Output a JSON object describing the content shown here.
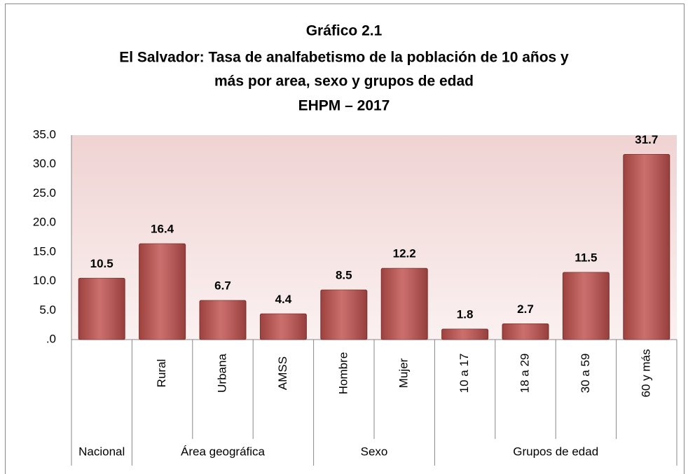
{
  "chart_data": {
    "type": "bar",
    "title": [
      "Gráfico 2.1",
      "El Salvador: Tasa de analfabetismo de la población de 10 años y",
      "más por area, sexo y grupos de edad",
      "EHPM – 2017"
    ],
    "groups": [
      {
        "name": "Nacional",
        "categories": [
          null
        ],
        "values": [
          10.5
        ]
      },
      {
        "name": "Área geográfica",
        "categories": [
          "Rural",
          "Urbana",
          "AMSS"
        ],
        "values": [
          16.4,
          6.7,
          4.4
        ]
      },
      {
        "name": "Sexo",
        "categories": [
          "Hombre",
          "Mujer"
        ],
        "values": [
          8.5,
          12.2
        ]
      },
      {
        "name": "Grupos de edad",
        "categories": [
          "10 a 17",
          "18 a 29",
          "30 a 59",
          "60 y más"
        ],
        "values": [
          1.8,
          2.7,
          11.5,
          31.7
        ]
      }
    ],
    "color": "#c0504d",
    "ylim": [
      0,
      35
    ],
    "yticks": [
      {
        "value": 0,
        "label": ".0"
      },
      {
        "value": 5,
        "label": "5.0"
      },
      {
        "value": 10,
        "label": "10.0"
      },
      {
        "value": 15,
        "label": "15.0"
      },
      {
        "value": 20,
        "label": "20.0"
      },
      {
        "value": 25,
        "label": "25.0"
      },
      {
        "value": 30,
        "label": "30.0"
      },
      {
        "value": 35,
        "label": "35.0"
      }
    ],
    "grid": false
  }
}
